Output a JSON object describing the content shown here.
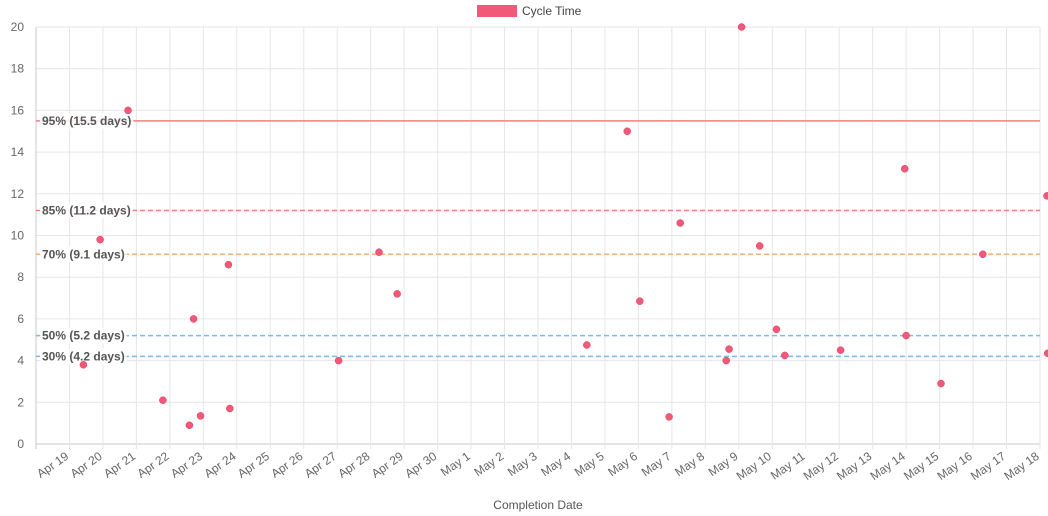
{
  "chart_data": {
    "type": "scatter",
    "xlabel": "Completion Date",
    "ylabel": "",
    "ylim": [
      0,
      20
    ],
    "yticks": [
      0,
      2,
      4,
      6,
      8,
      10,
      12,
      14,
      16,
      18,
      20
    ],
    "xlim": [
      "2021-04-18",
      "2021-05-18"
    ],
    "x_tick_labels": [
      "Apr 19",
      "Apr 20",
      "Apr 21",
      "Apr 22",
      "Apr 23",
      "Apr 24",
      "Apr 25",
      "Apr 26",
      "Apr 27",
      "Apr 28",
      "Apr 29",
      "Apr 30",
      "May 1",
      "May 2",
      "May 3",
      "May 4",
      "May 5",
      "May 6",
      "May 7",
      "May 8",
      "May 9",
      "May 10",
      "May 11",
      "May 12",
      "May 13",
      "May 14",
      "May 15",
      "May 16",
      "May 17",
      "May 18"
    ],
    "grid": true,
    "legend_position": "top-center",
    "series": [
      {
        "name": "Cycle Time",
        "color": "#f05a78",
        "points": [
          {
            "x": "2021-04-19 10:00",
            "y": 3.8
          },
          {
            "x": "2021-04-19 22:00",
            "y": 9.8
          },
          {
            "x": "2021-04-20 18:00",
            "y": 16.0
          },
          {
            "x": "2021-04-21 19:00",
            "y": 2.1
          },
          {
            "x": "2021-04-22 14:00",
            "y": 0.9
          },
          {
            "x": "2021-04-22 17:00",
            "y": 6.0
          },
          {
            "x": "2021-04-22 22:00",
            "y": 1.35
          },
          {
            "x": "2021-04-23 18:00",
            "y": 8.6
          },
          {
            "x": "2021-04-23 19:00",
            "y": 1.7
          },
          {
            "x": "2021-04-27 01:00",
            "y": 4.0
          },
          {
            "x": "2021-04-28 06:00",
            "y": 9.2
          },
          {
            "x": "2021-04-28 19:00",
            "y": 7.2
          },
          {
            "x": "2021-05-04 11:00",
            "y": 4.75
          },
          {
            "x": "2021-05-05 16:00",
            "y": 15.0
          },
          {
            "x": "2021-05-06 01:00",
            "y": 6.85
          },
          {
            "x": "2021-05-06 22:00",
            "y": 1.3
          },
          {
            "x": "2021-05-07 06:00",
            "y": 10.6
          },
          {
            "x": "2021-05-08 15:00",
            "y": 4.0
          },
          {
            "x": "2021-05-08 17:00",
            "y": 4.55
          },
          {
            "x": "2021-05-09 02:00",
            "y": 20.0
          },
          {
            "x": "2021-05-09 15:00",
            "y": 9.5
          },
          {
            "x": "2021-05-10 03:00",
            "y": 5.5
          },
          {
            "x": "2021-05-10 09:00",
            "y": 4.25
          },
          {
            "x": "2021-05-12 01:00",
            "y": 4.5
          },
          {
            "x": "2021-05-13 23:00",
            "y": 13.2
          },
          {
            "x": "2021-05-14 00:00",
            "y": 5.2
          },
          {
            "x": "2021-05-15 01:00",
            "y": 2.9
          },
          {
            "x": "2021-05-16 07:00",
            "y": 9.1
          },
          {
            "x": "2021-05-18 05:00",
            "y": 11.9
          },
          {
            "x": "2021-05-18 05:30",
            "y": 4.35
          }
        ]
      }
    ],
    "percentile_lines": [
      {
        "label": "95% (15.5 days)",
        "value": 15.5,
        "color": "#f08080",
        "dash": "solid"
      },
      {
        "label": "85% (11.2 days)",
        "value": 11.2,
        "color": "#f08080",
        "dash": "dashed"
      },
      {
        "label": "70% (9.1 days)",
        "value": 9.1,
        "color": "#f5b07a",
        "dash": "dashed"
      },
      {
        "label": "50% (5.2 days)",
        "value": 5.2,
        "color": "#7cb9f0",
        "dash": "dashed"
      },
      {
        "label": "30% (4.2 days)",
        "value": 4.2,
        "color": "#7cb9f0",
        "dash": "dashed"
      }
    ]
  }
}
